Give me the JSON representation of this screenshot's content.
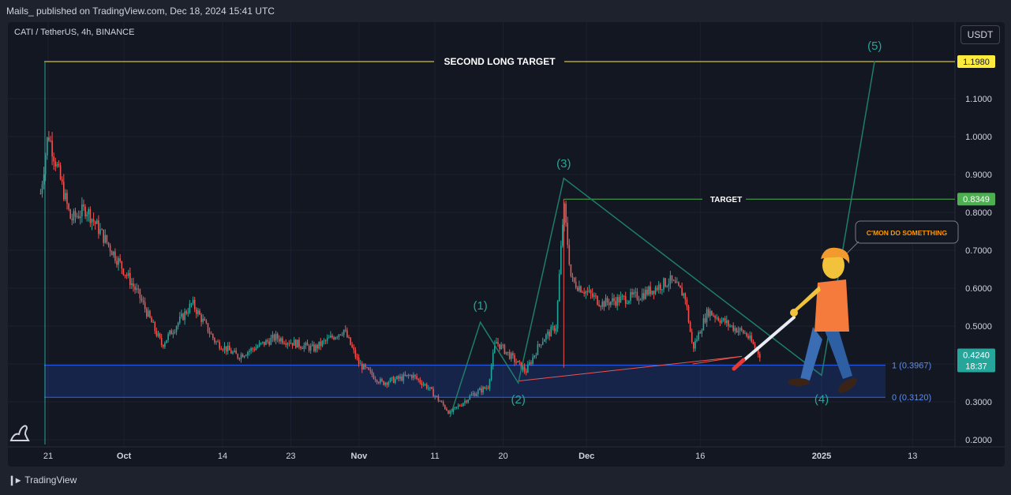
{
  "header": {
    "published": "Mails_ published on TradingView.com, Dec 18, 2024 15:41 UTC"
  },
  "symbol": "CATI / TetherUS, 4h, BINANCE",
  "currency_button": "USDT",
  "footer": {
    "logo": "TradingView"
  },
  "colors": {
    "bull": "#26a69a",
    "bear": "#ef5350",
    "wave": "#1e7d6c",
    "target": "#4caf50",
    "long_target": "#ffeb3b",
    "zone": "#2962ff"
  },
  "annotations": {
    "second_long_target": "SECOND LONG TARGET",
    "target": "TARGET",
    "callout": "C'MON DO SOMETTHING",
    "waves": [
      "(1)",
      "(2)",
      "(3)",
      "(4)",
      "(5)"
    ],
    "fib_levels": [
      "1 (0.3967)",
      "0 (0.3120)"
    ]
  },
  "price_tags": {
    "long_target": "1.1980",
    "target": "0.8349",
    "current": "0.4240",
    "countdown": "18:37"
  },
  "chart_data": {
    "type": "candlestick",
    "symbol": "CATI / TetherUS",
    "interval": "4h",
    "exchange": "BINANCE",
    "currency": "USDT",
    "y_axis_ticks": [
      "1.1000",
      "1.0000",
      "0.9000",
      "0.8000",
      "0.7000",
      "0.6000",
      "0.5000",
      "0.4000",
      "0.3000",
      "0.2000"
    ],
    "x_axis_ticks": [
      "21",
      "Oct",
      "14",
      "23",
      "Nov",
      "11",
      "20",
      "Dec",
      "16",
      "2025",
      "13"
    ],
    "ylim": [
      0.18,
      1.26
    ],
    "price_path": [
      {
        "date": "2024-09-20",
        "price": 0.85
      },
      {
        "date": "2024-09-21",
        "price": 1.01
      },
      {
        "date": "2024-09-24",
        "price": 0.78
      },
      {
        "date": "2024-09-26",
        "price": 0.81
      },
      {
        "date": "2024-09-30",
        "price": 0.68
      },
      {
        "date": "2024-10-03",
        "price": 0.58
      },
      {
        "date": "2024-10-06",
        "price": 0.45
      },
      {
        "date": "2024-10-10",
        "price": 0.56
      },
      {
        "date": "2024-10-13",
        "price": 0.46
      },
      {
        "date": "2024-10-16",
        "price": 0.42
      },
      {
        "date": "2024-10-21",
        "price": 0.47
      },
      {
        "date": "2024-10-26",
        "price": 0.44
      },
      {
        "date": "2024-10-30",
        "price": 0.49
      },
      {
        "date": "2024-11-01",
        "price": 0.4
      },
      {
        "date": "2024-11-04",
        "price": 0.35
      },
      {
        "date": "2024-11-08",
        "price": 0.37
      },
      {
        "date": "2024-11-10",
        "price": 0.34
      },
      {
        "date": "2024-11-13",
        "price": 0.27
      },
      {
        "date": "2024-11-16",
        "price": 0.32
      },
      {
        "date": "2024-11-18",
        "price": 0.34
      },
      {
        "date": "2024-11-19",
        "price": 0.46
      },
      {
        "date": "2024-11-21",
        "price": 0.42
      },
      {
        "date": "2024-11-23",
        "price": 0.38
      },
      {
        "date": "2024-11-25",
        "price": 0.46
      },
      {
        "date": "2024-11-27",
        "price": 0.5
      },
      {
        "date": "2024-11-28",
        "price": 0.82
      },
      {
        "date": "2024-11-29",
        "price": 0.62
      },
      {
        "date": "2024-12-03",
        "price": 0.56
      },
      {
        "date": "2024-12-08",
        "price": 0.58
      },
      {
        "date": "2024-12-12",
        "price": 0.62
      },
      {
        "date": "2024-12-14",
        "price": 0.58
      },
      {
        "date": "2024-12-15",
        "price": 0.44
      },
      {
        "date": "2024-12-17",
        "price": 0.54
      },
      {
        "date": "2024-12-20",
        "price": 0.5
      },
      {
        "date": "2024-12-22",
        "price": 0.48
      },
      {
        "date": "2024-12-24",
        "price": 0.42
      }
    ],
    "levels": [
      {
        "label": "SECOND LONG TARGET",
        "price": 1.198
      },
      {
        "label": "TARGET",
        "price": 0.8349
      },
      {
        "label": "1 (0.3967)",
        "price": 0.3967
      },
      {
        "label": "0 (0.3120)",
        "price": 0.312
      }
    ],
    "elliott_waves": [
      {
        "label": "",
        "date": "2024-11-13",
        "price": 0.26
      },
      {
        "label": "(1)",
        "date": "2024-11-17",
        "price": 0.51
      },
      {
        "label": "(2)",
        "date": "2024-11-22",
        "price": 0.35
      },
      {
        "label": "(3)",
        "date": "2024-11-28",
        "price": 0.89
      },
      {
        "label": "(4)",
        "date": "2025-01-01",
        "price": 0.37
      },
      {
        "label": "(5)",
        "date": "2025-01-08",
        "price": 1.2
      }
    ],
    "last_price": 0.424
  }
}
